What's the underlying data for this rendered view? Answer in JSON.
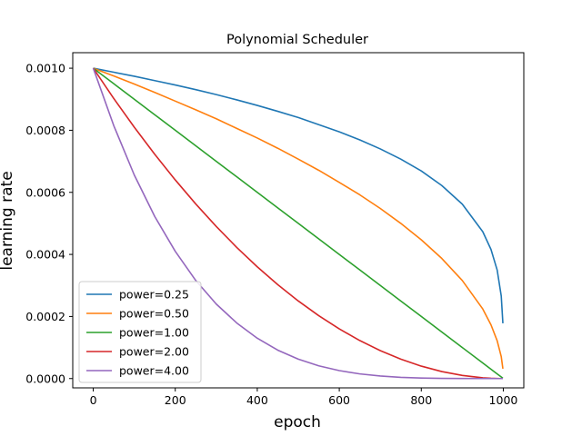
{
  "chart_data": {
    "type": "line",
    "title": "Polynomial Scheduler",
    "xlabel": "epoch",
    "ylabel": "learning rate",
    "xlim": [
      -50,
      1050
    ],
    "ylim": [
      -3e-05,
      0.00105
    ],
    "xticks": [
      0,
      200,
      400,
      600,
      800,
      1000
    ],
    "xtick_labels": [
      "0",
      "200",
      "400",
      "600",
      "800",
      "1000"
    ],
    "yticks": [
      0,
      0.0002,
      0.0004,
      0.0006,
      0.0008,
      0.001
    ],
    "ytick_labels": [
      "0.0000",
      "0.0002",
      "0.0004",
      "0.0006",
      "0.0008",
      "0.0010"
    ],
    "grid": false,
    "legend_position": "lower-left",
    "x": [
      0,
      50,
      100,
      150,
      200,
      250,
      300,
      350,
      400,
      450,
      500,
      550,
      600,
      650,
      700,
      750,
      800,
      850,
      900,
      950,
      970,
      985,
      995,
      999
    ],
    "series": [
      {
        "name": "power=0.25",
        "color": "#1f77b4",
        "values": [
          0.001,
          0.000987,
          0.000974,
          0.00096,
          0.000946,
          0.000931,
          0.000915,
          0.000898,
          0.00088,
          0.000861,
          0.000841,
          0.000818,
          0.000795,
          0.000769,
          0.00074,
          0.000707,
          0.000669,
          0.000622,
          0.000562,
          0.000473,
          0.000416,
          0.00035,
          0.000266,
          0.000178
        ]
      },
      {
        "name": "power=0.50",
        "color": "#ff7f0e",
        "values": [
          0.001,
          0.000975,
          0.000949,
          0.000922,
          0.000894,
          0.000866,
          0.000837,
          0.000806,
          0.000775,
          0.000742,
          0.000707,
          0.000671,
          0.000632,
          0.000592,
          0.000548,
          0.0005,
          0.000447,
          0.000387,
          0.000316,
          0.000224,
          0.000173,
          0.000122,
          7.07e-05,
          3.16e-05
        ]
      },
      {
        "name": "power=1.00",
        "color": "#2ca02c",
        "values": [
          0.001,
          0.00095,
          0.0009,
          0.00085,
          0.0008,
          0.00075,
          0.0007,
          0.00065,
          0.0006,
          0.00055,
          0.0005,
          0.00045,
          0.0004,
          0.00035,
          0.0003,
          0.00025,
          0.0002,
          0.00015,
          0.0001,
          5e-05,
          3e-05,
          1.5e-05,
          5e-06,
          1e-06
        ]
      },
      {
        "name": "power=2.00",
        "color": "#d62728",
        "values": [
          0.001,
          0.0009025,
          0.00081,
          0.0007225,
          0.00064,
          0.0005625,
          0.00049,
          0.0004225,
          0.00036,
          0.0003025,
          0.00025,
          0.0002025,
          0.00016,
          0.0001225,
          9e-05,
          6.25e-05,
          4e-05,
          2.25e-05,
          1e-05,
          2.5e-06,
          9e-07,
          2e-07,
          0.0,
          0.0
        ]
      },
      {
        "name": "power=4.00",
        "color": "#9467bd",
        "values": [
          0.001,
          0.000815,
          0.000656,
          0.000522,
          0.00041,
          0.000316,
          0.00024,
          0.000179,
          0.00013,
          9.15e-05,
          6.25e-05,
          4.1e-05,
          2.56e-05,
          1.5e-05,
          8.1e-06,
          3.9e-06,
          1.6e-06,
          5e-07,
          1e-07,
          0.0,
          0.0,
          0.0,
          0.0,
          0.0
        ]
      }
    ]
  }
}
